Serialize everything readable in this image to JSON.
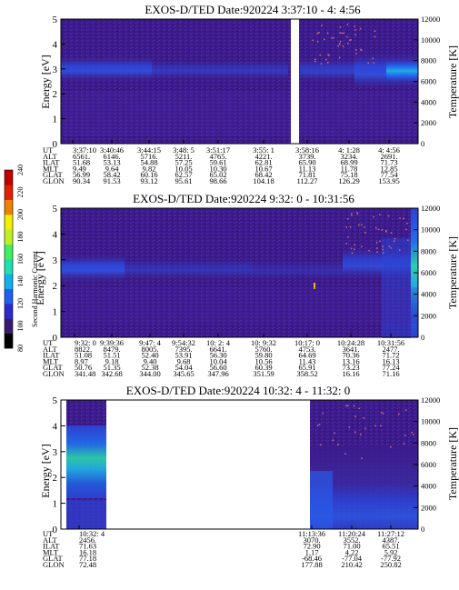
{
  "colors": {
    "background": "#3d1a8a",
    "band_blue": "#2c43d6",
    "band_cyan": "#1fb4e6",
    "band_green": "#2ad8a8",
    "data_gap": "#ffffff",
    "specks": "#d07080"
  },
  "colorbar": {
    "label": "Second Harmonic Current",
    "ticks": [
      "80",
      "100",
      "120",
      "140",
      "160",
      "180",
      "200",
      "220",
      "240"
    ],
    "colors": [
      "#000000",
      "#3a1a6e",
      "#2a2ad0",
      "#2060f0",
      "#10b0f0",
      "#20e0b0",
      "#40f060",
      "#c0f020",
      "#f0f000",
      "#f08000",
      "#e02000",
      "#c00000"
    ]
  },
  "panels": [
    {
      "title": "EXOS-D/TED   Date:920224  3:37:10 - 4: 4:56",
      "ylabel_left": "Energy [eV]",
      "ylabel_right": "Temperature [K]",
      "yticks_left": [
        "0",
        "1",
        "2",
        "3",
        "4",
        "5"
      ],
      "yticks_right": [
        "0",
        "2000",
        "4000",
        "6000",
        "8000",
        "10000",
        "12000"
      ],
      "row_labels": [
        "UT",
        "ALT",
        "ILAT",
        "MLT",
        "GLAT",
        "GLON"
      ],
      "columns": [
        [
          "3:37:10",
          "6561.",
          "51.68",
          "9.49",
          "56.99",
          "90.34"
        ],
        [
          "3:40:46",
          "6146.",
          "53.13",
          "9.64",
          "58.42",
          "91.53"
        ],
        [
          "3:44:15",
          "5716.",
          "54.88",
          "9.82",
          "60.16",
          "93.12"
        ],
        [
          "3:48: 5",
          "5211.",
          "57.25",
          "10.05",
          "62.57",
          "95.61"
        ],
        [
          "3:51:17",
          "4765.",
          "59.61",
          "10.30",
          "65.02",
          "98.66"
        ],
        [
          "3:55: 1",
          "4221.",
          "62.81",
          "10.67",
          "68.42",
          "104.18"
        ],
        [
          "3:58:16",
          "3739.",
          "65.90",
          "11.13",
          "71.81",
          "112.27"
        ],
        [
          "4: 1:28",
          "3234.",
          "68.99",
          "11.78",
          "75.18",
          "126.29"
        ],
        [
          "4: 4:56",
          "2691.",
          "71.73",
          "12.85",
          "77.54",
          "153.95"
        ]
      ]
    },
    {
      "title": "EXOS-D/TED   Date:920224  9:32: 0 - 10:31:56",
      "ylabel_left": "Energy [eV]",
      "ylabel_right": "Temperature [K]",
      "yticks_left": [
        "0",
        "1",
        "2",
        "3",
        "4",
        "5"
      ],
      "yticks_right": [
        "0",
        "2000",
        "4000",
        "6000",
        "8000",
        "10000",
        "12000"
      ],
      "row_labels": [
        "UT",
        "ALT",
        "ILAT",
        "MLT",
        "GLAT",
        "GLON"
      ],
      "columns": [
        [
          "9:32: 0",
          "8822.",
          "51.08",
          "8.97",
          "50.76",
          "341.48"
        ],
        [
          "9:39:36",
          "8479.",
          "51.51",
          "9.18",
          "51.35",
          "342.68"
        ],
        [
          "9:47: 4",
          "8005.",
          "52.40",
          "9.40",
          "52.38",
          "344.00"
        ],
        [
          "9:54:32",
          "7395.",
          "53.91",
          "9.68",
          "54.04",
          "345.65"
        ],
        [
          "10: 2: 4",
          "6641.",
          "56.30",
          "10.04",
          "56.60",
          "347.96"
        ],
        [
          "10: 9:32",
          "5760.",
          "59.80",
          "10.56",
          "60.39",
          "351.59"
        ],
        [
          "10:17: 0",
          "4753.",
          "64.69",
          "11.43",
          "65.91",
          "358.52"
        ],
        [
          "10:24:28",
          "3641.",
          "70.36",
          "13.16",
          "73.23",
          "16.16"
        ],
        [
          "10:31:56",
          "2477.",
          "71.72",
          "16.13",
          "77.24",
          "71.16"
        ]
      ]
    },
    {
      "title": "EXOS-D/TED   Date:920224  10:32: 4 - 11:32: 0",
      "ylabel_left": "Energy [eV]",
      "ylabel_right": "Temperature [K]",
      "yticks_left": [
        "0",
        "1",
        "2",
        "3",
        "4",
        "5"
      ],
      "yticks_right": [
        "0",
        "2000",
        "4000",
        "6000",
        "8000",
        "10000",
        "12000"
      ],
      "row_labels": [
        "UT",
        "ALT",
        "ILAT",
        "MLT",
        "GLAT",
        "GLON"
      ],
      "columns": [
        [
          "10:32: 4",
          "2456.",
          "71.63",
          "16.18",
          "77.18",
          "72.48"
        ],
        [
          "11:13:36",
          "3070.",
          "72.90",
          "1.17",
          "-68.46",
          "177.88"
        ],
        [
          "11:20:24",
          "3552.",
          "71.00",
          "4.22",
          "-77.04",
          "210.42"
        ],
        [
          "11:27:12",
          "4387.",
          "65.51",
          "5.92",
          "-77.92",
          "250.82"
        ]
      ]
    }
  ],
  "chart_data": [
    {
      "type": "heatmap",
      "title": "EXOS-D/TED   Date:920224  3:37:10 - 4: 4:56",
      "xlabel": "UT",
      "ylabel": "Energy [eV]",
      "y2label": "Temperature [K]",
      "ylim": [
        0,
        5
      ],
      "y2lim": [
        0,
        12000
      ],
      "x_ticks": [
        "3:37:10",
        "3:40:46",
        "3:44:15",
        "3:48: 5",
        "3:51:17",
        "3:55: 1",
        "3:58:16",
        "4: 1:28",
        "4: 4:56"
      ],
      "data_gap": {
        "from": "3:55:20",
        "to": "3:56:15"
      },
      "features": [
        {
          "description": "enhanced band",
          "x_range": [
            "3:37:10",
            "3:44:15"
          ],
          "energy_range": [
            2.5,
            3.5
          ]
        },
        {
          "description": "enhanced band",
          "x_range": [
            "4: 1:28",
            "4: 4:56"
          ],
          "energy_range": [
            2.4,
            3.8
          ]
        }
      ]
    },
    {
      "type": "heatmap",
      "title": "EXOS-D/TED   Date:920224  9:32: 0 - 10:31:56",
      "xlabel": "UT",
      "ylabel": "Energy [eV]",
      "y2label": "Temperature [K]",
      "ylim": [
        0,
        5
      ],
      "y2lim": [
        0,
        12000
      ],
      "x_ticks": [
        "9:32: 0",
        "9:39:36",
        "9:47: 4",
        "9:54:32",
        "10: 2: 4",
        "10: 9:32",
        "10:17: 0",
        "10:24:28",
        "10:31:56"
      ],
      "features": [
        {
          "description": "enhanced band",
          "x_range": [
            "9:32: 0",
            "9:39:36"
          ],
          "energy_range": [
            2.1,
            3.0
          ]
        },
        {
          "description": "enhanced band",
          "x_range": [
            "10:24:28",
            "10:31:56"
          ],
          "energy_range": [
            2.4,
            3.6
          ]
        }
      ]
    },
    {
      "type": "heatmap",
      "title": "EXOS-D/TED   Date:920224  10:32: 4 - 11:32: 0",
      "xlabel": "UT",
      "ylabel": "Energy [eV]",
      "y2label": "Temperature [K]",
      "ylim": [
        0,
        5
      ],
      "y2lim": [
        0,
        12000
      ],
      "x_ticks": [
        "10:32: 4",
        "11:13:36",
        "11:20:24",
        "11:27:12"
      ],
      "data_segments": [
        [
          "10:32: 4",
          "10:40:00"
        ],
        [
          "11:11:30",
          "11:32: 0"
        ]
      ],
      "features": [
        {
          "description": "intense band",
          "x_range": [
            "10:32: 4",
            "10:40:00"
          ],
          "energy_range": [
            1.5,
            3.2
          ]
        }
      ]
    }
  ]
}
